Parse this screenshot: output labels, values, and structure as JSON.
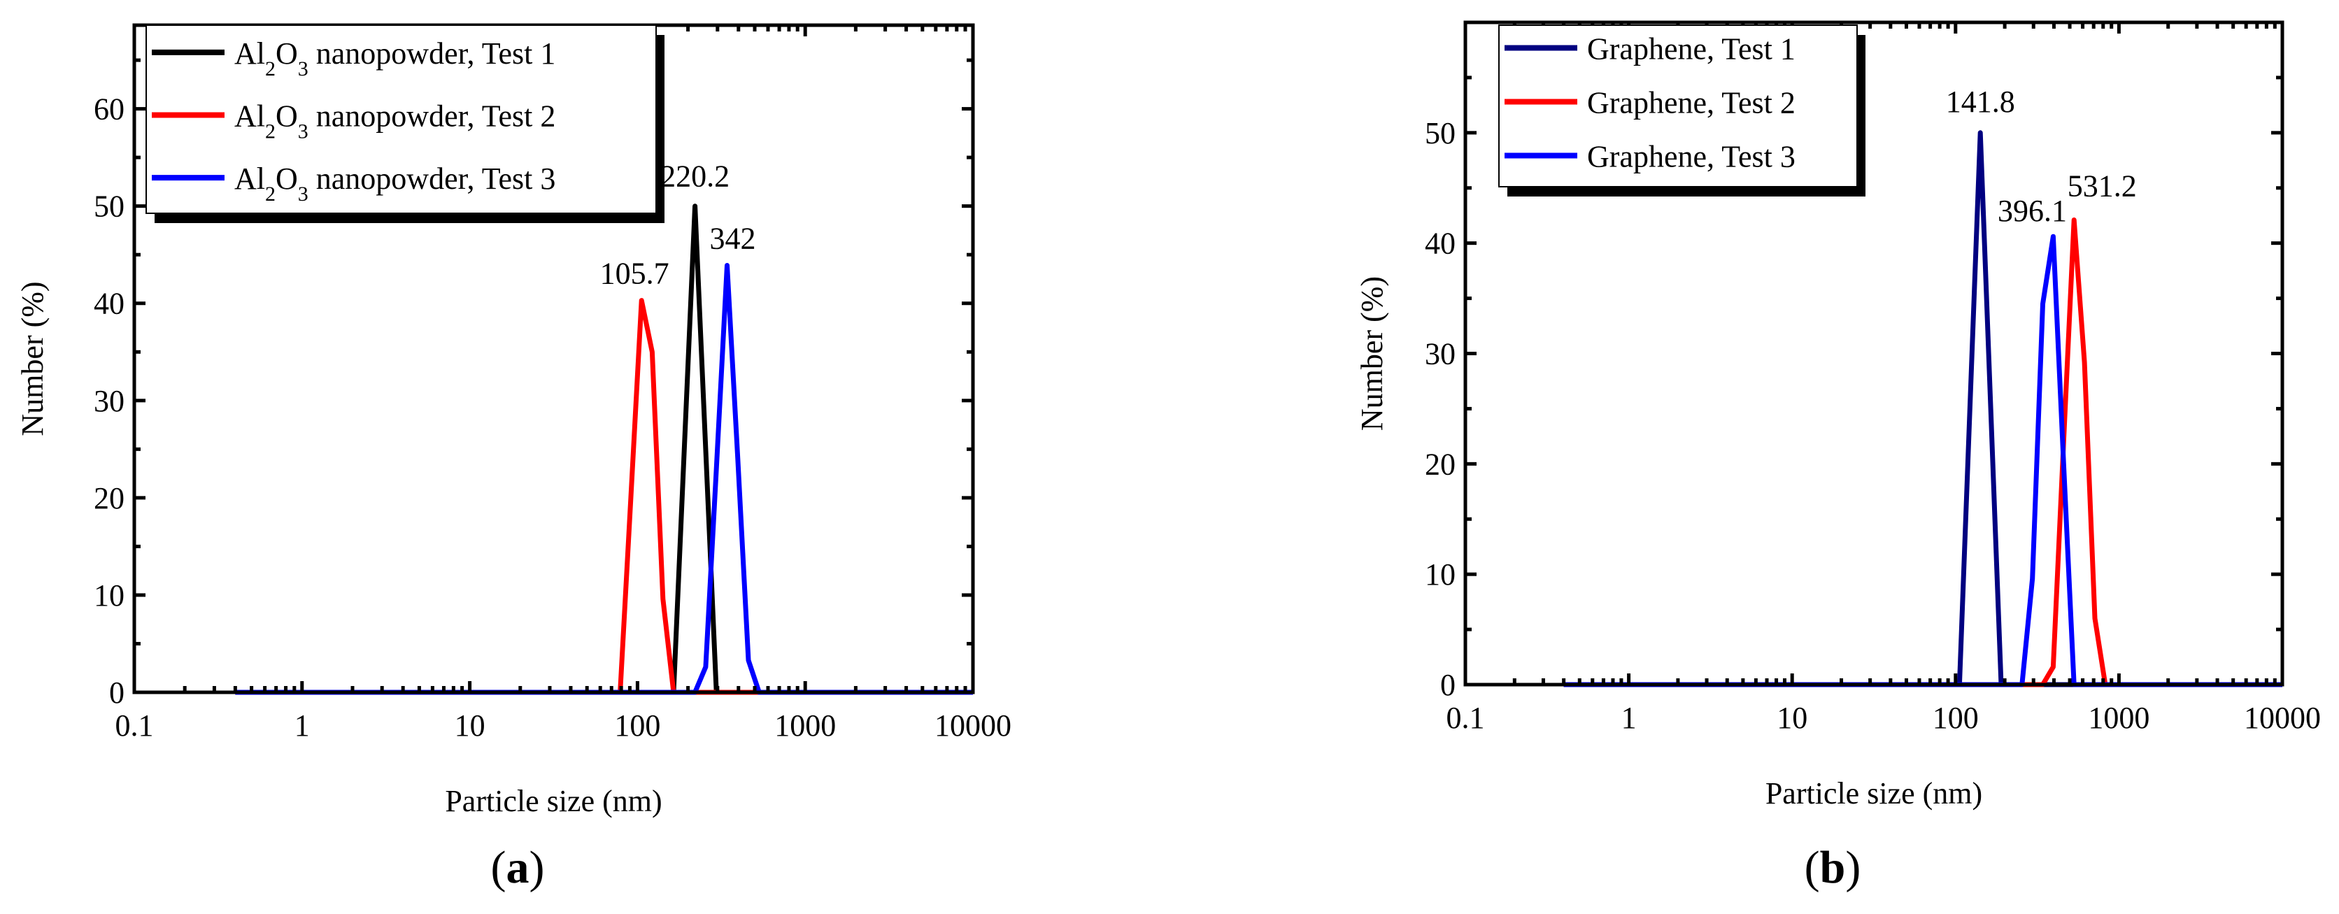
{
  "chart_data": [
    {
      "type": "line",
      "panel_letter": "a",
      "xlabel": "Particle size (nm)",
      "ylabel": "Number (%)",
      "xscale": "log",
      "xlim": [
        0.1,
        10000
      ],
      "ylim": [
        0,
        68.6
      ],
      "xticks": [
        0.1,
        1,
        10,
        100,
        1000,
        10000
      ],
      "xtick_labels": [
        "0.1",
        "1",
        "10",
        "100",
        "1000",
        "10000"
      ],
      "yticks": [
        0,
        10,
        20,
        30,
        40,
        50,
        60
      ],
      "ytick_labels": [
        "0",
        "10",
        "20",
        "30",
        "40",
        "50",
        "60"
      ],
      "grid": false,
      "legend_position": "top-left",
      "series": [
        {
          "name": "Al2O3 nanopowder, Test 1",
          "color": "#000000",
          "points": [
            [
              0.4,
              0
            ],
            [
              164.2,
              0
            ],
            [
              190.1,
              25
            ],
            [
              220.2,
              50
            ],
            [
              255,
              25
            ],
            [
              295.3,
              0
            ],
            [
              10000,
              0
            ]
          ]
        },
        {
          "name": "Al2O3 nanopowder, Test 2",
          "color": "#ff0000",
          "points": [
            [
              0.4,
              0
            ],
            [
              78.82,
              0
            ],
            [
              91.28,
              20
            ],
            [
              105.7,
              40.3
            ],
            [
              122.4,
              35
            ],
            [
              141.8,
              9.6
            ],
            [
              164.2,
              0
            ],
            [
              10000,
              0
            ]
          ]
        },
        {
          "name": "Al2O3 nanopowder, Test 3",
          "color": "#0000ff",
          "points": [
            [
              0.4,
              0
            ],
            [
              220.2,
              0
            ],
            [
              255,
              2.6
            ],
            [
              295.3,
              23
            ],
            [
              342,
              43.9
            ],
            [
              396.1,
              24
            ],
            [
              458.7,
              3.3
            ],
            [
              531.2,
              0
            ],
            [
              10000,
              0
            ]
          ]
        }
      ],
      "annotations": [
        {
          "text": "220.2",
          "x": 220.2,
          "y": 50
        },
        {
          "text": "105.7",
          "x": 105.7,
          "y": 40.3
        },
        {
          "text": "342",
          "x": 342,
          "y": 43.9
        }
      ]
    },
    {
      "type": "line",
      "panel_letter": "b",
      "xlabel": "Particle size (nm)",
      "ylabel": "Number (%)",
      "xscale": "log",
      "xlim": [
        0.1,
        10000
      ],
      "ylim": [
        0,
        60
      ],
      "xticks": [
        0.1,
        1,
        10,
        100,
        1000,
        10000
      ],
      "xtick_labels": [
        "0.1",
        "1",
        "10",
        "100",
        "1000",
        "10000"
      ],
      "yticks": [
        0,
        10,
        20,
        30,
        40,
        50
      ],
      "ytick_labels": [
        "0",
        "10",
        "20",
        "30",
        "40",
        "50"
      ],
      "grid": false,
      "legend_position": "top-left",
      "series": [
        {
          "name": "Graphene, Test 1",
          "color": "#000080",
          "points": [
            [
              0.4,
              0
            ],
            [
              105.7,
              0
            ],
            [
              122.4,
              25
            ],
            [
              141.8,
              50
            ],
            [
              164.2,
              25
            ],
            [
              190.1,
              0
            ],
            [
              10000,
              0
            ]
          ]
        },
        {
          "name": "Graphene, Test 2",
          "color": "#ff0000",
          "points": [
            [
              0.4,
              0
            ],
            [
              342,
              0
            ],
            [
              396.1,
              1.6
            ],
            [
              458.7,
              22
            ],
            [
              531.2,
              42.1
            ],
            [
              615.1,
              29.2
            ],
            [
              712.4,
              6
            ],
            [
              825,
              0
            ],
            [
              10000,
              0
            ]
          ]
        },
        {
          "name": "Graphene, Test 3",
          "color": "#0000ff",
          "points": [
            [
              0.4,
              0
            ],
            [
              255,
              0
            ],
            [
              295.3,
              9.6
            ],
            [
              342,
              34.5
            ],
            [
              396.1,
              40.6
            ],
            [
              458.7,
              20
            ],
            [
              531.2,
              0
            ],
            [
              10000,
              0
            ]
          ]
        }
      ],
      "annotations": [
        {
          "text": "141.8",
          "x": 141.8,
          "y": 50
        },
        {
          "text": "396.1",
          "x": 396.1,
          "y": 40.6
        },
        {
          "text": "531.2",
          "x": 531.2,
          "y": 42.1
        }
      ]
    }
  ]
}
